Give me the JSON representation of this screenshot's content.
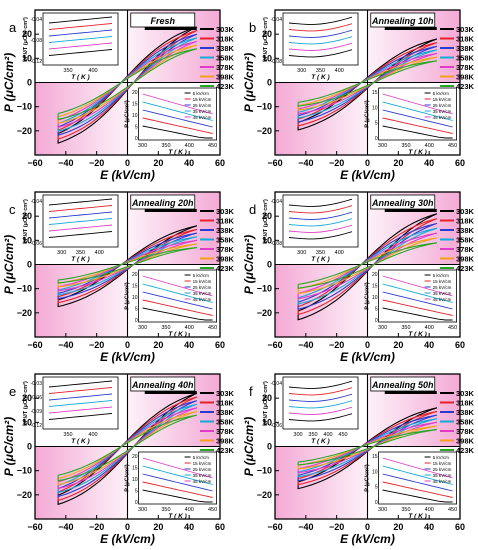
{
  "colors": {
    "temps": [
      "#000000",
      "#e8202a",
      "#2b3bd0",
      "#14a8d8",
      "#e03cc8",
      "#f0a21c",
      "#2aa52a"
    ],
    "pink": "#f3a6d3",
    "inset_in": [
      "#000000",
      "#e8202a",
      "#2b3bd0",
      "#14a8d8",
      "#e03cc8"
    ]
  },
  "chart_data": [
    {
      "type": "line",
      "panel_letter": "a",
      "label": "Fresh",
      "xlabel": "E (kV/cm)",
      "ylabel": "P (μC/cm²)",
      "xlim": [
        -60,
        60
      ],
      "ylim": [
        -30,
        30
      ],
      "xticks": [
        "−60",
        "−40",
        "−20",
        "0",
        "20",
        "40",
        "60"
      ],
      "yticks": [
        "−20",
        "−10",
        "0",
        "10",
        "20"
      ],
      "legend": [
        "303K",
        "318K",
        "338K",
        "358K",
        "378K",
        "398K",
        "423K"
      ],
      "series_pmax": [
        23,
        21.5,
        20,
        18.5,
        17,
        15.5,
        14
      ],
      "inset_left": {
        "xlabel": "T ( K )",
        "ylabel": "∂P/∂T (μC/K·cm²)",
        "xticks": [
          "350",
          "400"
        ],
        "yticks": [
          "-0.04",
          "-0.08",
          "-0.12"
        ]
      },
      "inset_right": {
        "xlabel": "T ( K )",
        "ylabel": "P (μC/cm²)",
        "xticks": [
          "300",
          "350",
          "400",
          "450"
        ],
        "yticks": [
          "20",
          "15",
          "10",
          "5",
          "0"
        ],
        "legend": [
          "5 kV/cm",
          "15 kV/cm",
          "25 kV/cm",
          "35 kV/cm",
          "45 kV/cm"
        ]
      }
    },
    {
      "type": "line",
      "panel_letter": "b",
      "label": "Annealing 10h",
      "xlabel": "E (kV/cm)",
      "ylabel": "P (μC/cm²)",
      "xlim": [
        -60,
        60
      ],
      "ylim": [
        -30,
        30
      ],
      "xticks": [
        "−60",
        "−40",
        "−20",
        "0",
        "20",
        "40",
        "60"
      ],
      "yticks": [
        "−20",
        "−10",
        "0",
        "10",
        "20"
      ],
      "legend": [
        "303K",
        "318K",
        "338K",
        "358K",
        "378K",
        "398K",
        "423K"
      ],
      "series_pmax": [
        18,
        16.5,
        15,
        13.5,
        12,
        10.5,
        9
      ],
      "inset_left": {
        "xlabel": "T ( K )",
        "ylabel": "∂P/∂T (μC/K·cm²)",
        "xticks": [
          "300",
          "350",
          "400"
        ],
        "yticks": [
          "-0.04",
          "-0.08"
        ]
      },
      "inset_right": {
        "xlabel": "T ( K )",
        "ylabel": "P (μC/cm²)",
        "xticks": [
          "300",
          "350",
          "400",
          "450"
        ],
        "yticks": [
          "15",
          "10",
          "5",
          "0"
        ],
        "legend": [
          "5 kV/cm",
          "15 kV/cm",
          "25 kV/cm",
          "35 kV/cm",
          "45 kV/cm"
        ]
      }
    },
    {
      "type": "line",
      "panel_letter": "c",
      "label": "Annealing 20h",
      "xlabel": "E (kV/cm)",
      "ylabel": "P (μC/cm²)",
      "xlim": [
        -60,
        60
      ],
      "ylim": [
        -30,
        30
      ],
      "xticks": [
        "−60",
        "−40",
        "−20",
        "0",
        "20",
        "40",
        "60"
      ],
      "yticks": [
        "−20",
        "−10",
        "0",
        "10",
        "20"
      ],
      "legend": [
        "303K",
        "318K",
        "338K",
        "358K",
        "378K",
        "398K",
        "423K"
      ],
      "series_pmax": [
        16,
        14.5,
        13,
        11.5,
        10,
        8.5,
        7
      ],
      "inset_left": {
        "xlabel": "T ( K )",
        "ylabel": "∂P/∂T (μC/K·cm²)",
        "xticks": [
          "300",
          "350",
          "400"
        ],
        "yticks": [
          "-0.04",
          "-0.06"
        ]
      },
      "inset_right": {
        "xlabel": "T ( K )",
        "ylabel": "P (μC/cm²)",
        "xticks": [
          "300",
          "350",
          "400",
          "450"
        ],
        "yticks": [
          "20",
          "15",
          "10",
          "5",
          "0"
        ],
        "legend": [
          "5 kV/cm",
          "15 kV/cm",
          "25 kV/cm",
          "35 kV/cm",
          "45 kV/cm"
        ]
      }
    },
    {
      "type": "line",
      "panel_letter": "d",
      "label": "Annealing 30h",
      "xlabel": "E (kV/cm)",
      "ylabel": "P (μC/cm²)",
      "xlim": [
        -60,
        60
      ],
      "ylim": [
        -30,
        30
      ],
      "xticks": [
        "−60",
        "−40",
        "−20",
        "0",
        "20",
        "40",
        "60"
      ],
      "yticks": [
        "−20",
        "−10",
        "0",
        "10",
        "20"
      ],
      "legend": [
        "303K",
        "318K",
        "338K",
        "358K",
        "378K",
        "398K",
        "423K"
      ],
      "series_pmax": [
        21,
        19,
        17,
        15,
        13,
        11,
        9
      ],
      "inset_left": {
        "xlabel": "T ( K )",
        "ylabel": "∂P/∂T (μC/K·cm²)",
        "xticks": [
          "300",
          "350",
          "400"
        ],
        "yticks": [
          "-0.04",
          "-0.08"
        ]
      },
      "inset_right": {
        "xlabel": "T ( K )",
        "ylabel": "P (μC/cm²)",
        "xticks": [
          "300",
          "350",
          "400",
          "450"
        ],
        "yticks": [
          "20",
          "15",
          "10",
          "5",
          "0"
        ],
        "legend": [
          "5 kV/cm",
          "15 kV/cm",
          "25 kV/cm",
          "35 kV/cm",
          "45 kV/cm"
        ]
      }
    },
    {
      "type": "line",
      "panel_letter": "e",
      "label": "Annealing 40h",
      "xlabel": "E (kV/cm)",
      "ylabel": "P (μC/cm²)",
      "xlim": [
        -60,
        60
      ],
      "ylim": [
        -30,
        30
      ],
      "xticks": [
        "−60",
        "−40",
        "−20",
        "0",
        "20",
        "40",
        "60"
      ],
      "yticks": [
        "−20",
        "−10",
        "0",
        "10",
        "20"
      ],
      "legend": [
        "303K",
        "318K",
        "338K",
        "358K",
        "378K",
        "398K",
        "423K"
      ],
      "series_pmax": [
        22,
        20.5,
        19,
        17.5,
        16,
        14.5,
        13
      ],
      "inset_left": {
        "xlabel": "T ( K )",
        "ylabel": "∂P/∂T (μC/K·cm²)",
        "xticks": [
          "350",
          "400"
        ],
        "yticks": [
          "-0.03",
          "-0.06",
          "-0.09",
          "-0.12"
        ]
      },
      "inset_right": {
        "xlabel": "T ( K )",
        "ylabel": "P (μC/cm²)",
        "xticks": [
          "300",
          "350",
          "400",
          "450"
        ],
        "yticks": [
          "20",
          "15",
          "10",
          "5",
          "0"
        ],
        "legend": [
          "5 kV/cm",
          "15 kV/cm",
          "25 kV/cm",
          "35 kV/cm",
          "45 kV/cm"
        ]
      }
    },
    {
      "type": "line",
      "panel_letter": "f",
      "label": "Annealing 50h",
      "xlabel": "E (kV/cm)",
      "ylabel": "P (μC/cm²)",
      "xlim": [
        -60,
        60
      ],
      "ylim": [
        -30,
        30
      ],
      "xticks": [
        "−60",
        "−40",
        "−20",
        "0",
        "20",
        "40",
        "60"
      ],
      "yticks": [
        "−20",
        "−10",
        "0",
        "10",
        "20"
      ],
      "legend": [
        "303K",
        "318K",
        "338K",
        "358K",
        "378K",
        "398K",
        "423K"
      ],
      "series_pmax": [
        16,
        14.5,
        13,
        11.5,
        10,
        8.5,
        7
      ],
      "inset_left": {
        "xlabel": "T ( K )",
        "ylabel": "∂P/∂T (μC/K·cm²)",
        "xticks": [
          "300",
          "350",
          "400",
          "450"
        ],
        "yticks": [
          "-0.04",
          "-0.06"
        ]
      },
      "inset_right": {
        "xlabel": "T ( K )",
        "ylabel": "P (μC/cm²)",
        "xticks": [
          "300",
          "350",
          "400",
          "450"
        ],
        "yticks": [
          "15",
          "10",
          "5",
          "0"
        ],
        "legend": [
          "5 kV/cm",
          "15 kV/cm",
          "25 kV/cm",
          "35 kV/cm",
          "45 kV/cm"
        ]
      }
    }
  ]
}
